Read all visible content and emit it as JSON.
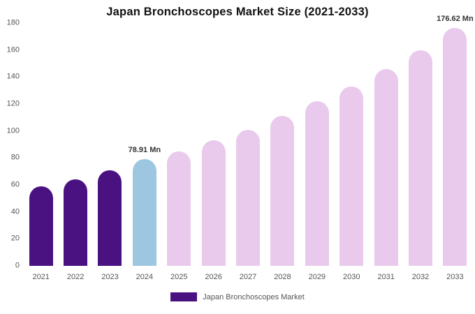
{
  "title": "Japan Bronchoscopes Market Size (2021-2033)",
  "legend": {
    "label": "Japan Bronchoscopes Market",
    "color": "#4a1181"
  },
  "colors": {
    "historical": "#4a1181",
    "base_year": "#9dc7e0",
    "forecast": "#e9caec"
  },
  "chart_data": {
    "type": "bar",
    "title": "Japan Bronchoscopes Market Size (2021-2033)",
    "xlabel": "",
    "ylabel": "",
    "categories": [
      "2021",
      "2022",
      "2023",
      "2024",
      "2025",
      "2026",
      "2027",
      "2028",
      "2029",
      "2030",
      "2031",
      "2032",
      "2033"
    ],
    "values": [
      59,
      64,
      71,
      78.91,
      85,
      93,
      101,
      111,
      122,
      133,
      146,
      160,
      176.62
    ],
    "bar_colors": [
      "#4a1181",
      "#4a1181",
      "#4a1181",
      "#9dc7e0",
      "#e9caec",
      "#e9caec",
      "#e9caec",
      "#e9caec",
      "#e9caec",
      "#e9caec",
      "#e9caec",
      "#e9caec",
      "#e9caec"
    ],
    "annotations": [
      {
        "category": "2024",
        "text": "78.91 Mn"
      },
      {
        "category": "2033",
        "text": "176.62 Mn"
      }
    ],
    "ylim": [
      0,
      180
    ],
    "yticks": [
      0,
      20,
      40,
      60,
      80,
      100,
      120,
      140,
      160,
      180
    ],
    "grid": false,
    "legend_position": "bottom",
    "legend_entries": [
      "Japan Bronchoscopes Market"
    ]
  }
}
